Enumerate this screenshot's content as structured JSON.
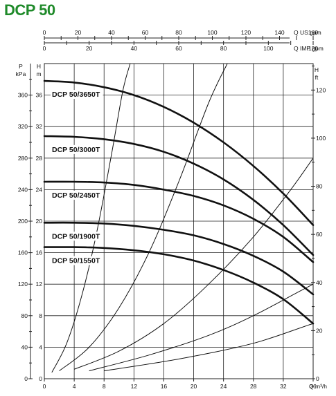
{
  "title": "DCP 50",
  "colors": {
    "title": "#1f8a2a",
    "grid": "#222222",
    "pump_curve": "#111111",
    "system_curve": "#111111"
  },
  "chart_data": {
    "type": "line",
    "title": "DCP 50",
    "axes": {
      "x_primary": {
        "label": "Q m³/h",
        "range": [
          0,
          36
        ],
        "ticks": [
          "0",
          "4",
          "8",
          "12",
          "16",
          "20",
          "24",
          "28",
          "32",
          "36"
        ]
      },
      "x_us_gpm": {
        "label": "Q US gpm",
        "range": [
          0,
          160
        ],
        "ticks": [
          "0",
          "20",
          "40",
          "60",
          "80",
          "100",
          "120",
          "140",
          "160"
        ]
      },
      "x_imp_gpm": {
        "label": "Q IMP gpm",
        "range": [
          0,
          120
        ],
        "ticks": [
          "0",
          "20",
          "40",
          "60",
          "80",
          "100",
          "120"
        ]
      },
      "y_left_m": {
        "label": "H m",
        "range": [
          0,
          40
        ],
        "ticks": [
          "0",
          "4",
          "8",
          "12",
          "16",
          "20",
          "24",
          "28",
          "32",
          "36"
        ]
      },
      "y_left_kpa": {
        "label": "P kPa",
        "range": [
          0,
          400
        ],
        "ticks": [
          "0",
          "40",
          "80",
          "120",
          "160",
          "200",
          "240",
          "280",
          "320",
          "360"
        ]
      },
      "y_right_ft": {
        "label": "H ft",
        "range": [
          0,
          131
        ],
        "ticks": [
          "0",
          "20",
          "40",
          "60",
          "80",
          "100",
          "120"
        ]
      }
    },
    "grid": true,
    "x_unit_label": "Q m³/h",
    "series": [
      {
        "name": "DCP 50/3650T",
        "x": [
          0,
          4,
          8,
          12,
          16,
          20,
          24,
          28,
          32,
          36
        ],
        "y": [
          37.8,
          37.6,
          37.0,
          36.0,
          34.5,
          32.5,
          30.0,
          27.0,
          23.5,
          19.5
        ]
      },
      {
        "name": "DCP 50/3000T",
        "x": [
          0,
          4,
          8,
          12,
          16,
          20,
          24,
          28,
          32,
          36
        ],
        "y": [
          30.8,
          30.7,
          30.4,
          29.8,
          28.8,
          27.3,
          25.3,
          22.7,
          19.5,
          15.7
        ]
      },
      {
        "name": "DCP 50/2450T",
        "x": [
          0,
          4,
          8,
          12,
          16,
          20,
          24,
          28,
          32,
          36
        ],
        "y": [
          25.0,
          25.0,
          24.9,
          24.6,
          24.0,
          23.2,
          22.0,
          20.3,
          18.0,
          14.8
        ]
      },
      {
        "name": "DCP 50/1900T",
        "x": [
          0,
          4,
          8,
          12,
          16,
          20,
          24,
          28,
          32,
          36
        ],
        "y": [
          19.8,
          19.8,
          19.7,
          19.4,
          18.9,
          18.2,
          17.1,
          15.6,
          13.6,
          10.7
        ]
      },
      {
        "name": "DCP 50/1550T",
        "x": [
          0,
          4,
          8,
          12,
          16,
          20,
          24,
          28,
          32,
          36
        ],
        "y": [
          16.7,
          16.7,
          16.6,
          16.3,
          15.8,
          15.0,
          13.8,
          12.2,
          10.1,
          7.0
        ]
      }
    ],
    "system_curves": [
      {
        "x": [
          1,
          3,
          5,
          7,
          9,
          10.5,
          11.5
        ],
        "y": [
          0.8,
          4.5,
          10.5,
          18.5,
          28.5,
          36.5,
          40
        ]
      },
      {
        "x": [
          2,
          6,
          10,
          14,
          18,
          22,
          24.5
        ],
        "y": [
          1.0,
          4.0,
          9.0,
          16.0,
          25.0,
          35.0,
          40
        ]
      },
      {
        "x": [
          4,
          10,
          16,
          22,
          28,
          33,
          36
        ],
        "y": [
          1.2,
          3.5,
          7.0,
          12.0,
          18.0,
          24.0,
          28.0
        ]
      },
      {
        "x": [
          6,
          14,
          22,
          28,
          34,
          38
        ],
        "y": [
          1.0,
          3.0,
          5.5,
          8.0,
          11.0,
          13.0
        ]
      },
      {
        "x": [
          8,
          18,
          28,
          36,
          40
        ],
        "y": [
          1.0,
          2.5,
          4.5,
          7.0,
          8.0
        ]
      }
    ]
  }
}
